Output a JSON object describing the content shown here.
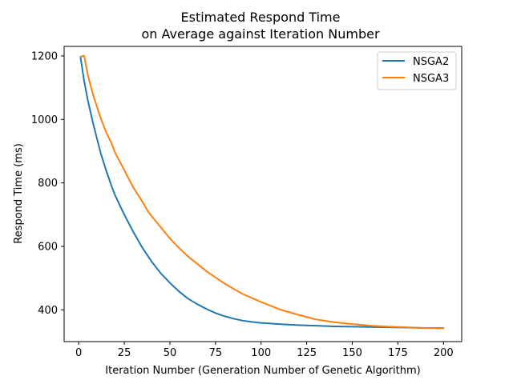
{
  "chart_data": {
    "type": "line",
    "title": [
      "Estimated Respond Time",
      "on Average against Iteration Number"
    ],
    "xlabel": "Iteration Number (Generation Number of Genetic Algorithm)",
    "ylabel": "Respond Time (ms)",
    "xlim": [
      -8,
      210
    ],
    "ylim": [
      300,
      1230
    ],
    "xticks": [
      0,
      25,
      50,
      75,
      100,
      125,
      150,
      175,
      200
    ],
    "yticks": [
      400,
      600,
      800,
      1000,
      1200
    ],
    "grid": false,
    "legend_position": "top-right",
    "series": [
      {
        "name": "NSGA2",
        "color": "#1f77b4",
        "x": [
          1,
          3,
          5,
          8,
          10,
          12,
          15,
          18,
          20,
          25,
          30,
          35,
          40,
          45,
          50,
          55,
          60,
          65,
          70,
          75,
          80,
          85,
          90,
          95,
          100,
          110,
          120,
          130,
          140,
          150,
          160,
          170,
          180,
          190,
          200
        ],
        "y": [
          1195,
          1120,
          1060,
          985,
          940,
          895,
          840,
          790,
          760,
          700,
          645,
          595,
          552,
          515,
          485,
          458,
          435,
          418,
          403,
          390,
          380,
          372,
          366,
          362,
          359,
          355,
          352,
          350,
          348,
          347,
          346,
          345,
          344,
          343,
          343
        ]
      },
      {
        "name": "NSGA3",
        "color": "#ff7f0e",
        "x": [
          1,
          3,
          5,
          8,
          10,
          12,
          15,
          18,
          20,
          25,
          30,
          35,
          38,
          40,
          45,
          50,
          55,
          60,
          65,
          70,
          75,
          80,
          85,
          90,
          95,
          100,
          110,
          120,
          130,
          140,
          150,
          160,
          170,
          180,
          190,
          200
        ],
        "y": [
          1198,
          1200,
          1140,
          1075,
          1040,
          1005,
          960,
          925,
          895,
          840,
          785,
          740,
          710,
          695,
          660,
          625,
          595,
          568,
          545,
          522,
          502,
          483,
          466,
          450,
          437,
          425,
          402,
          385,
          370,
          361,
          355,
          350,
          347,
          345,
          343,
          342
        ]
      }
    ]
  }
}
